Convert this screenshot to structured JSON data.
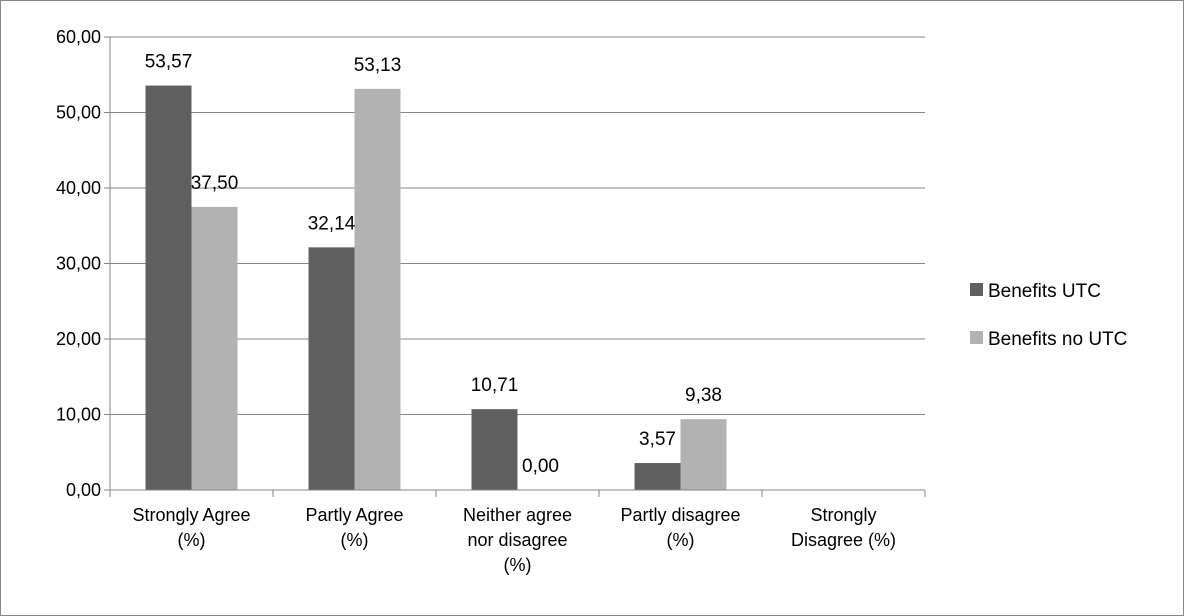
{
  "chart_data": {
    "type": "bar",
    "categories": [
      [
        "Strongly Agree",
        "(%)"
      ],
      [
        "Partly Agree",
        "(%)"
      ],
      [
        "Neither agree",
        "nor disagree",
        "(%)"
      ],
      [
        "Partly disagree",
        "(%)"
      ],
      [
        "Strongly",
        "Disagree (%)"
      ]
    ],
    "series": [
      {
        "name": "Benefits UTC",
        "color": "#5f5f5f",
        "values": [
          53.57,
          32.14,
          10.71,
          3.57,
          null
        ],
        "labels": [
          "53,57",
          "32,14",
          "10,71",
          "3,57",
          ""
        ]
      },
      {
        "name": "Benefits no UTC",
        "color": "#b2b2b2",
        "values": [
          37.5,
          53.13,
          0.0,
          9.38,
          null
        ],
        "labels": [
          "37,50",
          "53,13",
          "0,00",
          "9,38",
          ""
        ]
      }
    ],
    "yticks": [
      "0,00",
      "10,00",
      "20,00",
      "30,00",
      "40,00",
      "50,00",
      "60,00"
    ],
    "ylim": [
      0,
      60
    ],
    "grid": true,
    "legend_position": "right"
  }
}
